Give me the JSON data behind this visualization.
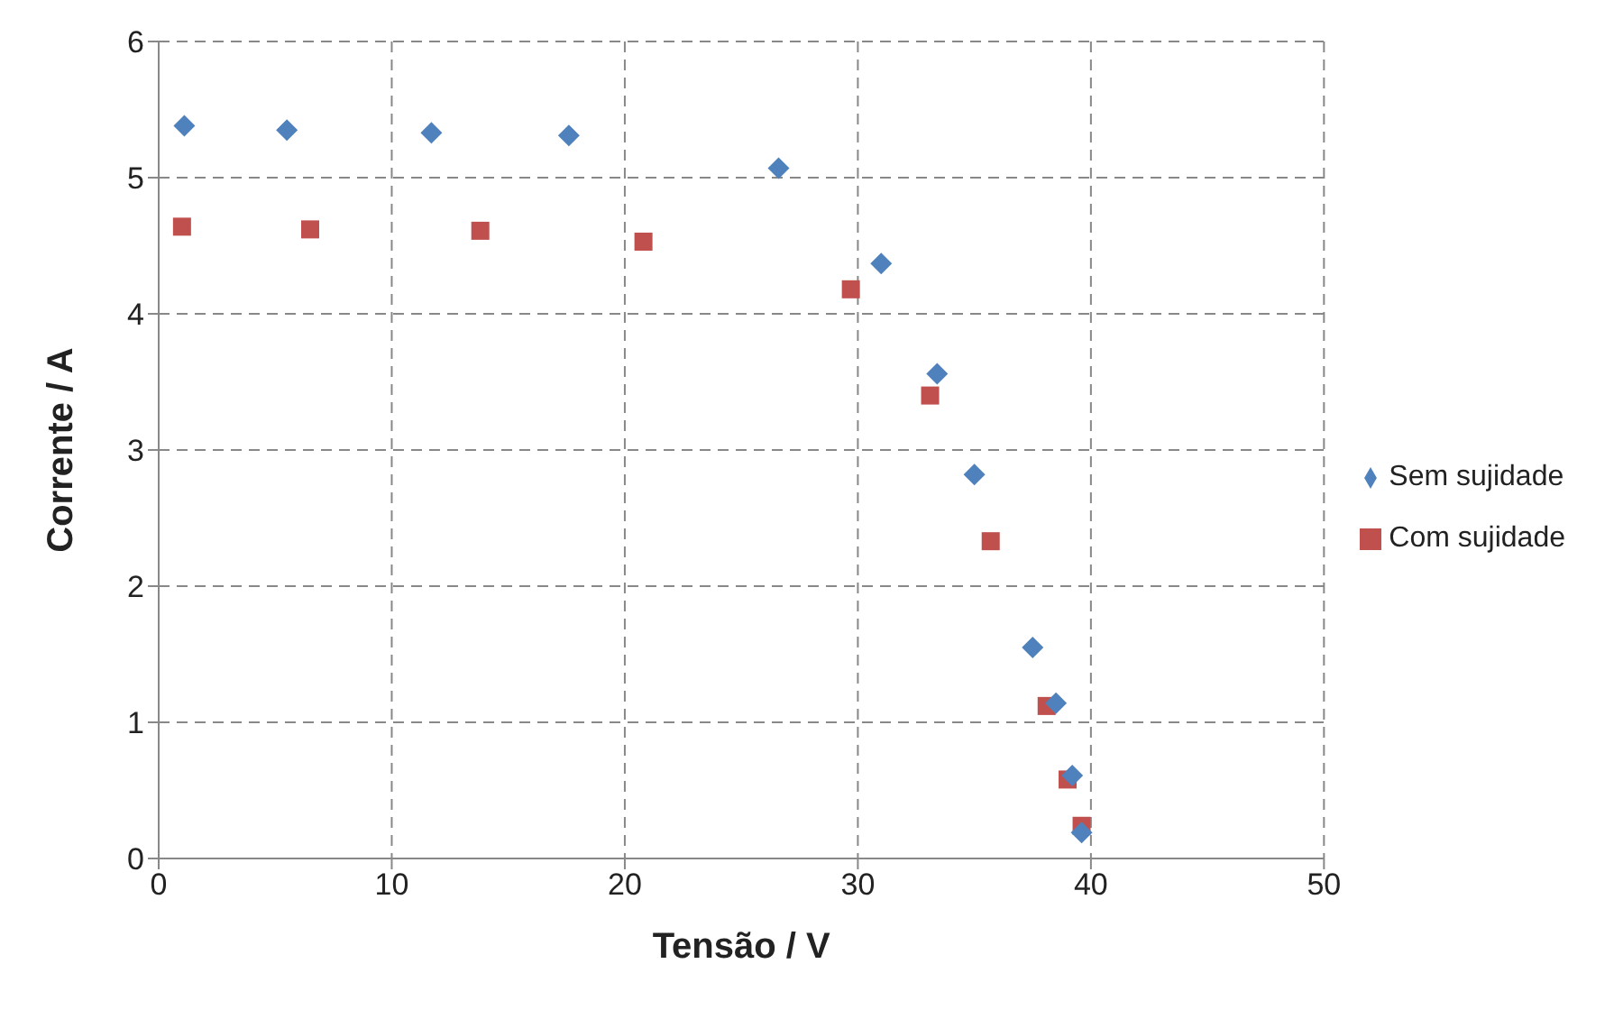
{
  "chart_data": {
    "type": "scatter",
    "xlabel": "Tensão / V",
    "ylabel": "Corrente / A",
    "xlim": [
      0,
      50
    ],
    "xticks": [
      0,
      10,
      20,
      30,
      40,
      50
    ],
    "ylim": [
      0,
      6
    ],
    "yticks": [
      0,
      1,
      2,
      3,
      4,
      5,
      6
    ],
    "grid": true,
    "legend": "right",
    "series": [
      {
        "name": "Sem sujidade",
        "color": "#4f81bd",
        "marker": "diamond",
        "x": [
          1.1,
          5.5,
          11.7,
          17.6,
          26.6,
          31.0,
          33.4,
          35.0,
          37.5,
          38.5,
          39.2,
          39.6
        ],
        "values": [
          5.38,
          5.35,
          5.33,
          5.31,
          5.07,
          4.37,
          3.56,
          2.82,
          1.55,
          1.14,
          0.61,
          0.19
        ]
      },
      {
        "name": "Com sujidade",
        "color": "#c0504d",
        "marker": "square",
        "x": [
          1.0,
          6.5,
          13.8,
          20.8,
          29.7,
          33.1,
          35.7,
          38.1,
          39.0,
          39.6
        ],
        "values": [
          4.64,
          4.62,
          4.61,
          4.53,
          4.18,
          3.4,
          2.33,
          1.12,
          0.58,
          0.24
        ]
      }
    ]
  }
}
